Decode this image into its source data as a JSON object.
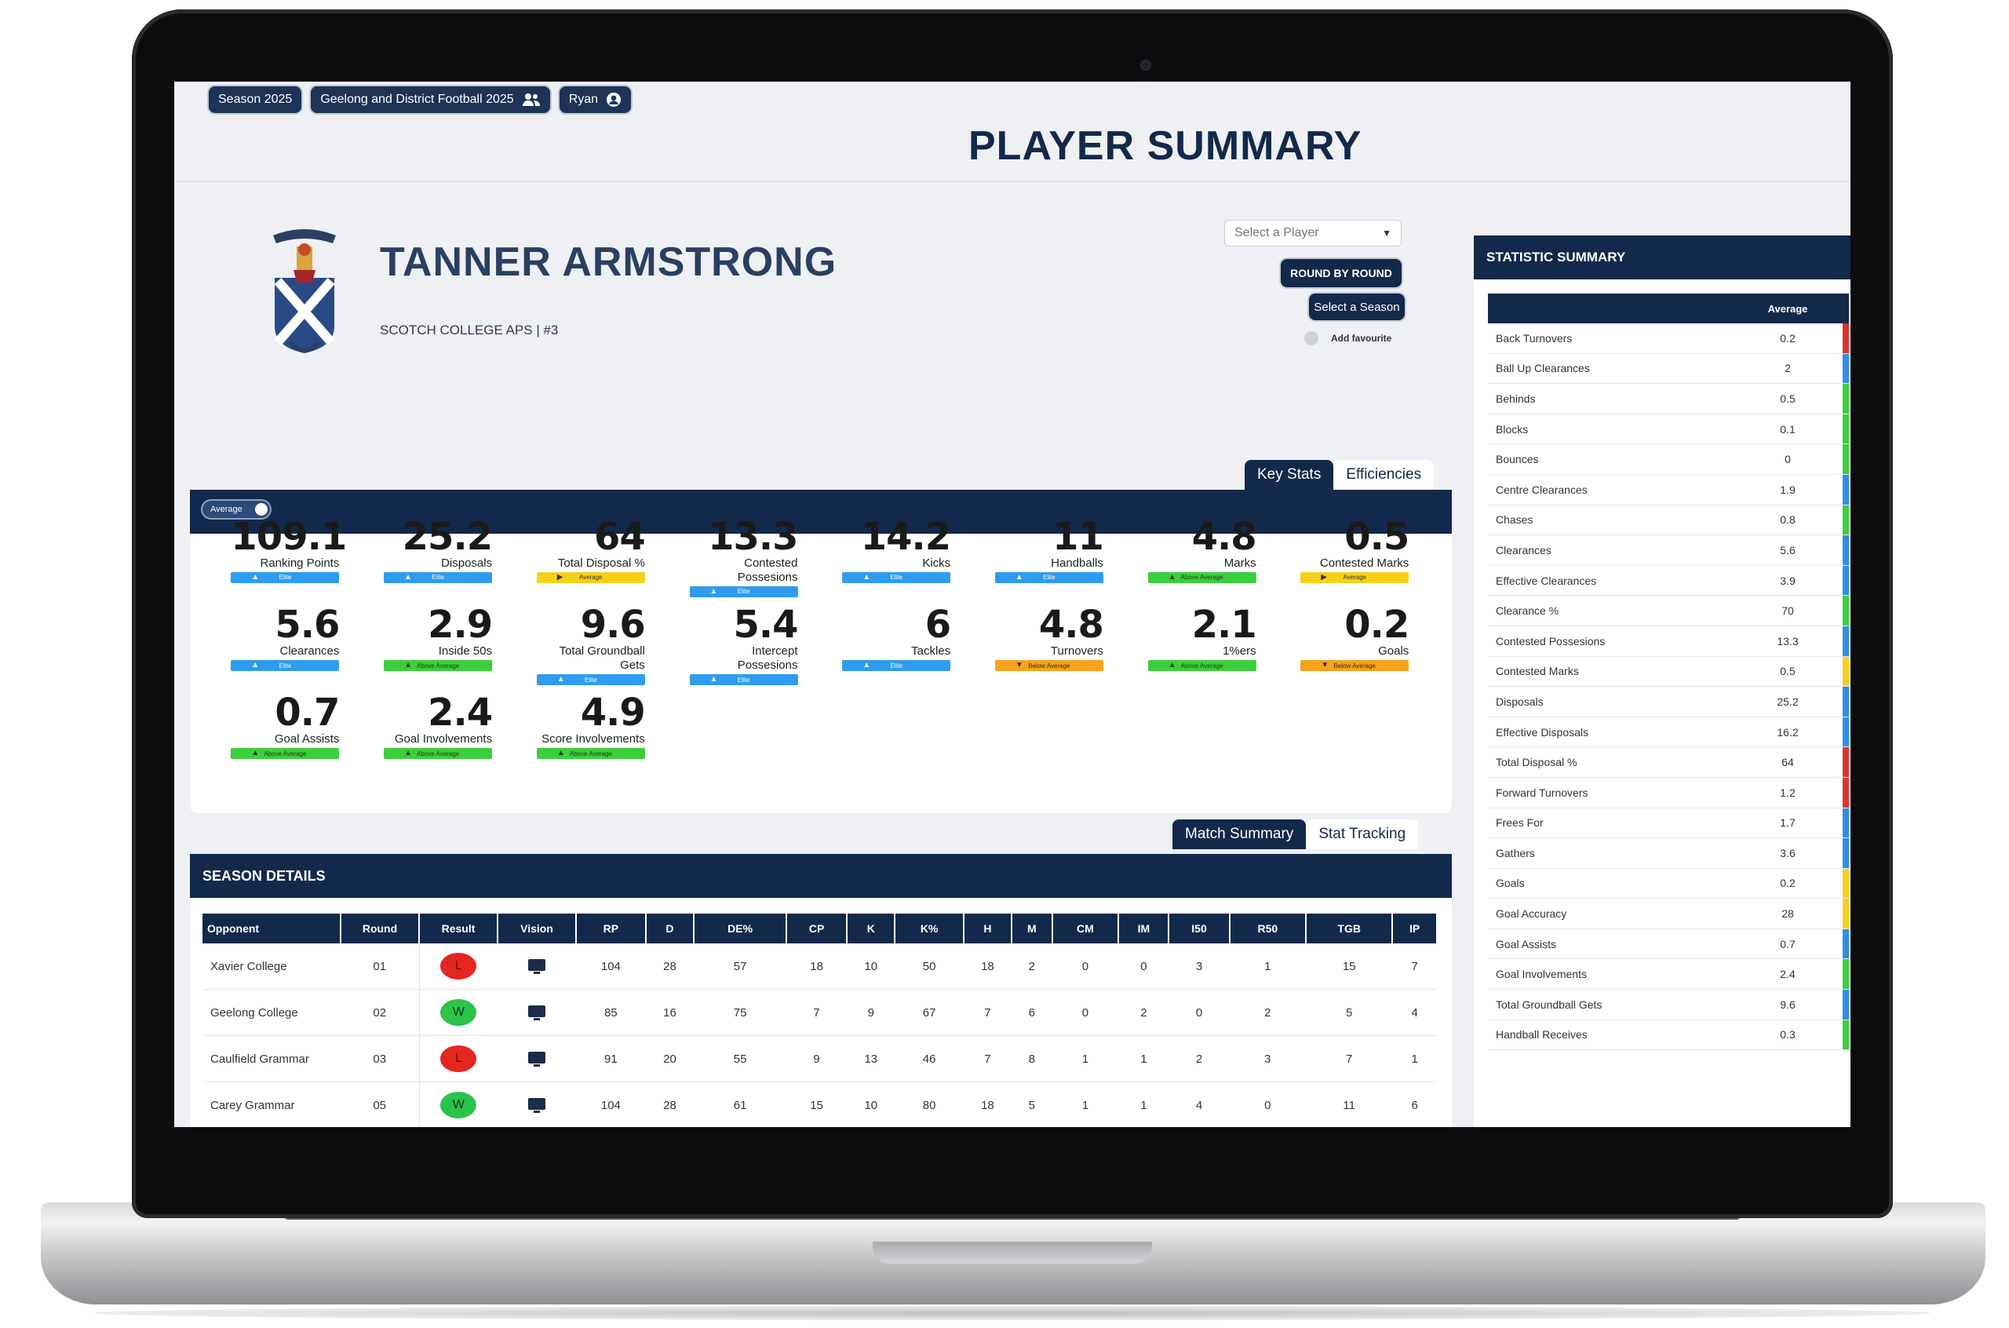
{
  "topbar": {
    "season": "Season 2025",
    "league": "Geelong and District Football 2025",
    "user": "Ryan"
  },
  "page_title": "PLAYER SUMMARY",
  "player": {
    "name": "TANNER ARMSTRONG",
    "subtitle": "SCOTCH COLLEGE APS | #3"
  },
  "controls": {
    "select_player": "Select a Player",
    "round_by_round": "ROUND BY ROUND",
    "select_season": "Select a Season",
    "add_favourite": "Add favourite"
  },
  "key_tabs": [
    "Key Stats",
    "Efficiencies"
  ],
  "average_toggle": "Average",
  "key_stats": [
    {
      "value": "109.1",
      "label": "Ranking Points",
      "rating": "Elite",
      "level": "elite",
      "dir": "up"
    },
    {
      "value": "25.2",
      "label": "Disposals",
      "rating": "Elite",
      "level": "elite",
      "dir": "up"
    },
    {
      "value": "64",
      "label": "Total Disposal %",
      "rating": "Average",
      "level": "avg",
      "dir": "right"
    },
    {
      "value": "13.3",
      "label": "Contested Possesions",
      "rating": "Elite",
      "level": "elite",
      "dir": "up"
    },
    {
      "value": "14.2",
      "label": "Kicks",
      "rating": "Elite",
      "level": "elite",
      "dir": "up"
    },
    {
      "value": "11",
      "label": "Handballs",
      "rating": "Elite",
      "level": "elite",
      "dir": "up"
    },
    {
      "value": "4.8",
      "label": "Marks",
      "rating": "Above Average",
      "level": "above",
      "dir": "up"
    },
    {
      "value": "0.5",
      "label": "Contested Marks",
      "rating": "Average",
      "level": "avg",
      "dir": "right"
    },
    {
      "value": "5.6",
      "label": "Clearances",
      "rating": "Elite",
      "level": "elite",
      "dir": "up"
    },
    {
      "value": "2.9",
      "label": "Inside 50s",
      "rating": "Above Average",
      "level": "above",
      "dir": "up"
    },
    {
      "value": "9.6",
      "label": "Total Groundball Gets",
      "rating": "Elite",
      "level": "elite",
      "dir": "up"
    },
    {
      "value": "5.4",
      "label": "Intercept Possesions",
      "rating": "Elite",
      "level": "elite",
      "dir": "up"
    },
    {
      "value": "6",
      "label": "Tackles",
      "rating": "Elite",
      "level": "elite",
      "dir": "up"
    },
    {
      "value": "4.8",
      "label": "Turnovers",
      "rating": "Below Average",
      "level": "below",
      "dir": "down"
    },
    {
      "value": "2.1",
      "label": "1%ers",
      "rating": "Above Average",
      "level": "above",
      "dir": "up"
    },
    {
      "value": "0.2",
      "label": "Goals",
      "rating": "Below Average",
      "level": "below",
      "dir": "down"
    },
    {
      "value": "0.7",
      "label": "Goal Assists",
      "rating": "Above Average",
      "level": "above",
      "dir": "up"
    },
    {
      "value": "2.4",
      "label": "Goal Involvements",
      "rating": "Above Average",
      "level": "above",
      "dir": "up"
    },
    {
      "value": "4.9",
      "label": "Score Involvements",
      "rating": "Above Average",
      "level": "above",
      "dir": "up"
    }
  ],
  "season_tabs": [
    "Match Summary",
    "Stat Tracking"
  ],
  "season_details": {
    "title": "SEASON DETAILS",
    "columns": [
      "Opponent",
      "Round",
      "Result",
      "Vision",
      "RP",
      "D",
      "DE%",
      "CP",
      "K",
      "K%",
      "H",
      "M",
      "CM",
      "IM",
      "I50",
      "R50",
      "TGB",
      "IP"
    ],
    "rows": [
      {
        "opponent": "Xavier College",
        "round": "01",
        "result": "L",
        "stats": [
          "104",
          "28",
          "57",
          "18",
          "10",
          "50",
          "18",
          "2",
          "0",
          "0",
          "3",
          "1",
          "15",
          "7"
        ]
      },
      {
        "opponent": "Geelong College",
        "round": "02",
        "result": "W",
        "stats": [
          "85",
          "16",
          "75",
          "7",
          "9",
          "67",
          "7",
          "6",
          "0",
          "2",
          "0",
          "2",
          "5",
          "4"
        ]
      },
      {
        "opponent": "Caulfield Grammar",
        "round": "03",
        "result": "L",
        "stats": [
          "91",
          "20",
          "55",
          "9",
          "13",
          "46",
          "7",
          "8",
          "1",
          "1",
          "2",
          "3",
          "7",
          "1"
        ]
      },
      {
        "opponent": "Carey Grammar",
        "round": "05",
        "result": "W",
        "stats": [
          "104",
          "28",
          "61",
          "15",
          "10",
          "80",
          "18",
          "5",
          "1",
          "1",
          "4",
          "0",
          "11",
          "6"
        ]
      }
    ]
  },
  "statistic_summary": {
    "title": "STATISTIC SUMMARY",
    "header": "Average",
    "rows": [
      {
        "name": "Back Turnovers",
        "value": "0.2",
        "color": "#e0342b"
      },
      {
        "name": "Ball Up Clearances",
        "value": "2",
        "color": "#2f8fe6"
      },
      {
        "name": "Behinds",
        "value": "0.5",
        "color": "#3ccf3c"
      },
      {
        "name": "Blocks",
        "value": "0.1",
        "color": "#3ccf3c"
      },
      {
        "name": "Bounces",
        "value": "0",
        "color": "#3ccf3c"
      },
      {
        "name": "Centre Clearances",
        "value": "1.9",
        "color": "#2f8fe6"
      },
      {
        "name": "Chases",
        "value": "0.8",
        "color": "#3ccf3c"
      },
      {
        "name": "Clearances",
        "value": "5.6",
        "color": "#2f8fe6"
      },
      {
        "name": "Effective Clearances",
        "value": "3.9",
        "color": "#2f8fe6"
      },
      {
        "name": "Clearance %",
        "value": "70",
        "color": "#3ccf3c"
      },
      {
        "name": "Contested Possesions",
        "value": "13.3",
        "color": "#2f8fe6"
      },
      {
        "name": "Contested Marks",
        "value": "0.5",
        "color": "#f6d11b"
      },
      {
        "name": "Disposals",
        "value": "25.2",
        "color": "#2f8fe6"
      },
      {
        "name": "Effective Disposals",
        "value": "16.2",
        "color": "#2f8fe6"
      },
      {
        "name": "Total Disposal %",
        "value": "64",
        "color": "#e0342b"
      },
      {
        "name": "Forward Turnovers",
        "value": "1.2",
        "color": "#e0342b"
      },
      {
        "name": "Frees For",
        "value": "1.7",
        "color": "#2f8fe6"
      },
      {
        "name": "Gathers",
        "value": "3.6",
        "color": "#2f8fe6"
      },
      {
        "name": "Goals",
        "value": "0.2",
        "color": "#f6d11b"
      },
      {
        "name": "Goal Accuracy",
        "value": "28",
        "color": "#f6d11b"
      },
      {
        "name": "Goal Assists",
        "value": "0.7",
        "color": "#2f8fe6"
      },
      {
        "name": "Goal Involvements",
        "value": "2.4",
        "color": "#3ccf3c"
      },
      {
        "name": "Total Groundball Gets",
        "value": "9.6",
        "color": "#2f8fe6"
      },
      {
        "name": "Handball Receives",
        "value": "0.3",
        "color": "#3ccf3c"
      }
    ]
  }
}
